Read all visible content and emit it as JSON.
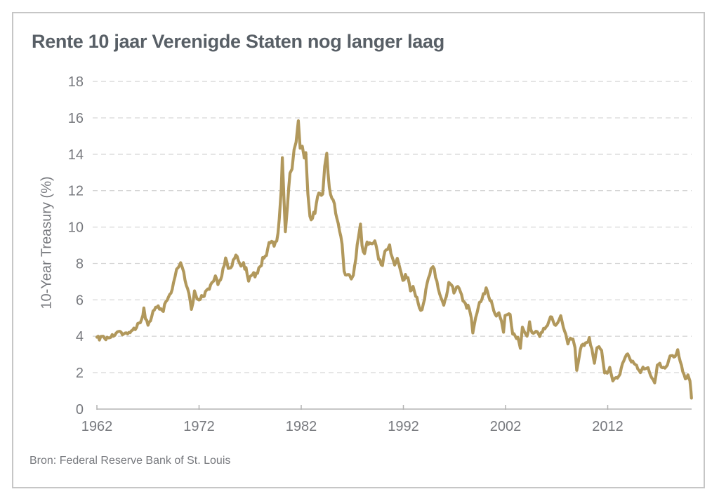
{
  "title": "Rente 10 jaar Verenigde Staten nog langer laag",
  "source": "Bron: Federal Reserve Bank of St. Louis",
  "colors": {
    "line": "#b1985c",
    "title": "#585f66",
    "axis_text": "#77797e",
    "gridline": "#d6d6d6",
    "axis_line": "#b3b3b3",
    "card_border": "#c6c6c6"
  },
  "chart_data": {
    "type": "line",
    "title": "Rente 10 jaar Verenigde Staten nog langer laag",
    "xlabel": "",
    "ylabel": "10-Year Treasury (%)",
    "ylim": [
      0,
      18
    ],
    "xlim": [
      1962,
      2020.5
    ],
    "y_ticks": [
      0,
      2,
      4,
      6,
      8,
      10,
      12,
      14,
      16,
      18
    ],
    "x_ticks": [
      1962,
      1972,
      1982,
      1992,
      2002,
      2012
    ],
    "grid": "horizontal-dashed",
    "legend_position": "none",
    "source": "Bron: Federal Reserve Bank of St. Louis",
    "series": [
      {
        "name": "10-Year Treasury (%)",
        "color": "#b1985c",
        "points": [
          [
            1962.0,
            3.95
          ],
          [
            1962.25,
            3.88
          ],
          [
            1962.5,
            3.96
          ],
          [
            1962.75,
            3.87
          ],
          [
            1963.0,
            3.9
          ],
          [
            1963.25,
            3.97
          ],
          [
            1963.5,
            4.02
          ],
          [
            1963.75,
            4.1
          ],
          [
            1964.0,
            4.15
          ],
          [
            1964.25,
            4.2
          ],
          [
            1964.5,
            4.17
          ],
          [
            1964.75,
            4.15
          ],
          [
            1965.0,
            4.2
          ],
          [
            1965.25,
            4.21
          ],
          [
            1965.5,
            4.28
          ],
          [
            1965.75,
            4.45
          ],
          [
            1966.0,
            4.65
          ],
          [
            1966.25,
            4.8
          ],
          [
            1966.5,
            5.2
          ],
          [
            1966.6,
            5.5
          ],
          [
            1966.75,
            5.0
          ],
          [
            1967.0,
            4.6
          ],
          [
            1967.25,
            4.85
          ],
          [
            1967.5,
            5.3
          ],
          [
            1967.75,
            5.7
          ],
          [
            1968.0,
            5.6
          ],
          [
            1968.25,
            5.5
          ],
          [
            1968.5,
            5.45
          ],
          [
            1968.75,
            5.9
          ],
          [
            1969.0,
            6.15
          ],
          [
            1969.25,
            6.3
          ],
          [
            1969.5,
            6.9
          ],
          [
            1969.8,
            7.7
          ],
          [
            1970.0,
            7.9
          ],
          [
            1970.2,
            8.1
          ],
          [
            1970.5,
            7.5
          ],
          [
            1970.75,
            6.9
          ],
          [
            1971.0,
            6.3
          ],
          [
            1971.25,
            5.45
          ],
          [
            1971.55,
            6.4
          ],
          [
            1971.8,
            5.95
          ],
          [
            1972.0,
            6.0
          ],
          [
            1972.25,
            6.15
          ],
          [
            1972.5,
            6.3
          ],
          [
            1972.75,
            6.45
          ],
          [
            1973.0,
            6.6
          ],
          [
            1973.25,
            6.85
          ],
          [
            1973.6,
            7.4
          ],
          [
            1973.85,
            6.85
          ],
          [
            1974.1,
            7.1
          ],
          [
            1974.35,
            7.7
          ],
          [
            1974.6,
            8.3
          ],
          [
            1974.85,
            7.7
          ],
          [
            1975.1,
            7.7
          ],
          [
            1975.35,
            8.1
          ],
          [
            1975.6,
            8.5
          ],
          [
            1975.85,
            8.1
          ],
          [
            1976.1,
            7.9
          ],
          [
            1976.35,
            7.95
          ],
          [
            1976.6,
            7.7
          ],
          [
            1976.85,
            7.1
          ],
          [
            1977.1,
            7.25
          ],
          [
            1977.35,
            7.4
          ],
          [
            1977.6,
            7.35
          ],
          [
            1977.85,
            7.7
          ],
          [
            1978.1,
            8.0
          ],
          [
            1978.35,
            8.4
          ],
          [
            1978.6,
            8.55
          ],
          [
            1978.85,
            9.0
          ],
          [
            1979.1,
            9.15
          ],
          [
            1979.35,
            8.95
          ],
          [
            1979.6,
            9.2
          ],
          [
            1979.85,
            10.4
          ],
          [
            1980.05,
            12.2
          ],
          [
            1980.15,
            13.65
          ],
          [
            1980.45,
            9.6
          ],
          [
            1980.65,
            11.3
          ],
          [
            1980.9,
            12.8
          ],
          [
            1981.1,
            13.3
          ],
          [
            1981.3,
            14.4
          ],
          [
            1981.5,
            14.8
          ],
          [
            1981.72,
            15.84
          ],
          [
            1981.9,
            14.2
          ],
          [
            1982.1,
            14.6
          ],
          [
            1982.3,
            13.9
          ],
          [
            1982.45,
            14.3
          ],
          [
            1982.65,
            12.0
          ],
          [
            1982.85,
            10.45
          ],
          [
            1983.1,
            10.55
          ],
          [
            1983.35,
            10.9
          ],
          [
            1983.6,
            11.7
          ],
          [
            1983.85,
            11.85
          ],
          [
            1984.1,
            12.0
          ],
          [
            1984.3,
            13.2
          ],
          [
            1984.5,
            13.95
          ],
          [
            1984.75,
            12.3
          ],
          [
            1985.0,
            11.6
          ],
          [
            1985.25,
            11.2
          ],
          [
            1985.5,
            10.4
          ],
          [
            1985.75,
            9.8
          ],
          [
            1986.0,
            9.2
          ],
          [
            1986.2,
            7.7
          ],
          [
            1986.45,
            7.3
          ],
          [
            1986.7,
            7.5
          ],
          [
            1986.9,
            7.2
          ],
          [
            1987.1,
            7.25
          ],
          [
            1987.35,
            8.4
          ],
          [
            1987.6,
            9.5
          ],
          [
            1987.8,
            10.2
          ],
          [
            1987.95,
            9.0
          ],
          [
            1988.2,
            8.5
          ],
          [
            1988.45,
            9.15
          ],
          [
            1988.7,
            9.0
          ],
          [
            1988.95,
            9.15
          ],
          [
            1989.2,
            9.4
          ],
          [
            1989.45,
            8.6
          ],
          [
            1989.7,
            8.1
          ],
          [
            1989.95,
            7.9
          ],
          [
            1990.2,
            8.6
          ],
          [
            1990.45,
            8.65
          ],
          [
            1990.65,
            8.95
          ],
          [
            1990.9,
            8.3
          ],
          [
            1991.15,
            8.05
          ],
          [
            1991.4,
            8.2
          ],
          [
            1991.7,
            7.7
          ],
          [
            1991.95,
            7.1
          ],
          [
            1992.2,
            7.35
          ],
          [
            1992.45,
            7.3
          ],
          [
            1992.7,
            6.5
          ],
          [
            1992.95,
            6.8
          ],
          [
            1993.2,
            6.2
          ],
          [
            1993.45,
            5.9
          ],
          [
            1993.7,
            5.35
          ],
          [
            1993.95,
            5.8
          ],
          [
            1994.2,
            6.5
          ],
          [
            1994.45,
            7.25
          ],
          [
            1994.7,
            7.6
          ],
          [
            1994.9,
            7.95
          ],
          [
            1995.15,
            7.3
          ],
          [
            1995.4,
            6.6
          ],
          [
            1995.7,
            6.15
          ],
          [
            1995.95,
            5.7
          ],
          [
            1996.2,
            6.15
          ],
          [
            1996.45,
            6.9
          ],
          [
            1996.7,
            6.8
          ],
          [
            1996.95,
            6.4
          ],
          [
            1997.2,
            6.7
          ],
          [
            1997.45,
            6.6
          ],
          [
            1997.7,
            6.2
          ],
          [
            1997.95,
            5.9
          ],
          [
            1998.2,
            5.6
          ],
          [
            1998.45,
            5.6
          ],
          [
            1998.65,
            5.0
          ],
          [
            1998.8,
            4.25
          ],
          [
            1998.95,
            4.7
          ],
          [
            1999.2,
            5.2
          ],
          [
            1999.45,
            5.8
          ],
          [
            1999.7,
            6.05
          ],
          [
            1999.95,
            6.45
          ],
          [
            2000.1,
            6.7
          ],
          [
            2000.35,
            6.1
          ],
          [
            2000.6,
            5.85
          ],
          [
            2000.85,
            5.5
          ],
          [
            2001.1,
            5.1
          ],
          [
            2001.35,
            5.35
          ],
          [
            2001.6,
            4.8
          ],
          [
            2001.8,
            4.3
          ],
          [
            2001.95,
            5.05
          ],
          [
            2002.2,
            5.25
          ],
          [
            2002.45,
            5.1
          ],
          [
            2002.7,
            4.2
          ],
          [
            2002.95,
            3.95
          ],
          [
            2003.2,
            3.9
          ],
          [
            2003.45,
            3.3
          ],
          [
            2003.65,
            4.45
          ],
          [
            2003.85,
            4.3
          ],
          [
            2004.1,
            4.0
          ],
          [
            2004.35,
            4.7
          ],
          [
            2004.6,
            4.2
          ],
          [
            2004.85,
            4.2
          ],
          [
            2005.1,
            4.3
          ],
          [
            2005.35,
            4.0
          ],
          [
            2005.6,
            4.25
          ],
          [
            2005.85,
            4.5
          ],
          [
            2006.1,
            4.6
          ],
          [
            2006.4,
            5.15
          ],
          [
            2006.65,
            4.8
          ],
          [
            2006.9,
            4.6
          ],
          [
            2007.1,
            4.7
          ],
          [
            2007.4,
            5.2
          ],
          [
            2007.65,
            4.6
          ],
          [
            2007.9,
            4.1
          ],
          [
            2008.1,
            3.6
          ],
          [
            2008.35,
            3.9
          ],
          [
            2008.6,
            3.85
          ],
          [
            2008.8,
            3.4
          ],
          [
            2008.97,
            2.1
          ],
          [
            2009.2,
            2.9
          ],
          [
            2009.45,
            3.55
          ],
          [
            2009.7,
            3.45
          ],
          [
            2009.95,
            3.7
          ],
          [
            2010.2,
            3.85
          ],
          [
            2010.45,
            3.3
          ],
          [
            2010.7,
            2.55
          ],
          [
            2010.95,
            3.3
          ],
          [
            2011.15,
            3.5
          ],
          [
            2011.4,
            3.15
          ],
          [
            2011.7,
            2.0
          ],
          [
            2011.95,
            2.0
          ],
          [
            2012.2,
            2.25
          ],
          [
            2012.5,
            1.55
          ],
          [
            2012.7,
            1.65
          ],
          [
            2012.95,
            1.75
          ],
          [
            2013.2,
            1.95
          ],
          [
            2013.45,
            2.5
          ],
          [
            2013.7,
            2.85
          ],
          [
            2013.95,
            3.0
          ],
          [
            2014.2,
            2.7
          ],
          [
            2014.45,
            2.6
          ],
          [
            2014.7,
            2.5
          ],
          [
            2014.95,
            2.2
          ],
          [
            2015.2,
            1.95
          ],
          [
            2015.45,
            2.35
          ],
          [
            2015.7,
            2.15
          ],
          [
            2015.95,
            2.3
          ],
          [
            2016.2,
            1.8
          ],
          [
            2016.45,
            1.6
          ],
          [
            2016.6,
            1.4
          ],
          [
            2016.85,
            2.4
          ],
          [
            2017.1,
            2.45
          ],
          [
            2017.35,
            2.25
          ],
          [
            2017.6,
            2.3
          ],
          [
            2017.85,
            2.4
          ],
          [
            2018.1,
            2.85
          ],
          [
            2018.35,
            2.95
          ],
          [
            2018.6,
            2.9
          ],
          [
            2018.85,
            3.2
          ],
          [
            2019.1,
            2.65
          ],
          [
            2019.35,
            2.1
          ],
          [
            2019.6,
            1.6
          ],
          [
            2019.85,
            1.85
          ],
          [
            2020.05,
            1.55
          ],
          [
            2020.15,
            1.0
          ],
          [
            2020.2,
            0.6
          ]
        ]
      }
    ]
  }
}
